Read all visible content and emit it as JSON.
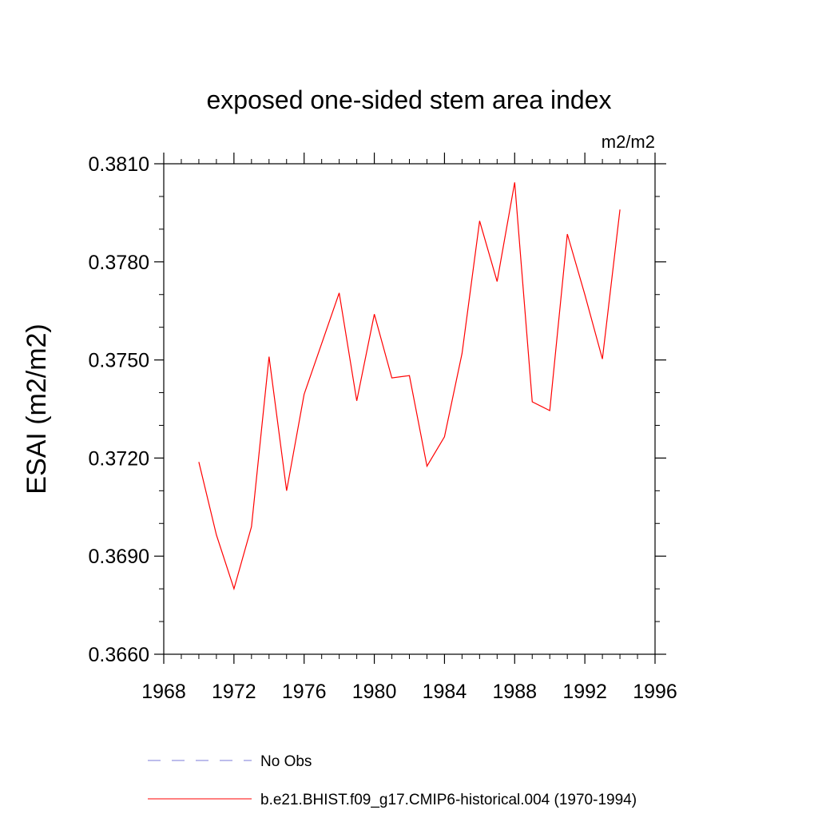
{
  "chart_data": {
    "type": "line",
    "title": "exposed one-sided stem area index",
    "units_label": "m2/m2",
    "ylabel": "ESAI  (m2/m2)",
    "xlabel": "",
    "xlim": [
      1968,
      1996
    ],
    "ylim": [
      0.366,
      0.381
    ],
    "x_ticks": [
      "1968",
      "1972",
      "1976",
      "1980",
      "1984",
      "1988",
      "1992",
      "1996"
    ],
    "y_ticks": [
      "0.3660",
      "0.3690",
      "0.3720",
      "0.3750",
      "0.3780",
      "0.3810"
    ],
    "grid": false,
    "series": [
      {
        "name": "b.e21.BHIST.f09_g17.CMIP6-historical.004 (1970-1994)",
        "color": "#ff0000",
        "style": "solid",
        "x": [
          1970,
          1971,
          1972,
          1973,
          1974,
          1975,
          1976,
          1977,
          1978,
          1979,
          1980,
          1981,
          1982,
          1983,
          1984,
          1985,
          1986,
          1987,
          1988,
          1989,
          1990,
          1991,
          1992,
          1993,
          1994
        ],
        "y": [
          0.37188,
          0.36965,
          0.368,
          0.3699,
          0.3751,
          0.371,
          0.37395,
          0.3755,
          0.37705,
          0.37375,
          0.3764,
          0.37445,
          0.37452,
          0.37175,
          0.37265,
          0.3752,
          0.37925,
          0.3774,
          0.38043,
          0.37372,
          0.37345,
          0.37885,
          0.377,
          0.37503,
          0.3796
        ]
      }
    ],
    "legend": {
      "placement": "bottom",
      "entries": [
        {
          "label": "No Obs",
          "color": "#7b7bd8",
          "style": "dashed"
        },
        {
          "label": "b.e21.BHIST.f09_g17.CMIP6-historical.004 (1970-1994)",
          "color": "#ff0000",
          "style": "solid"
        }
      ]
    }
  }
}
